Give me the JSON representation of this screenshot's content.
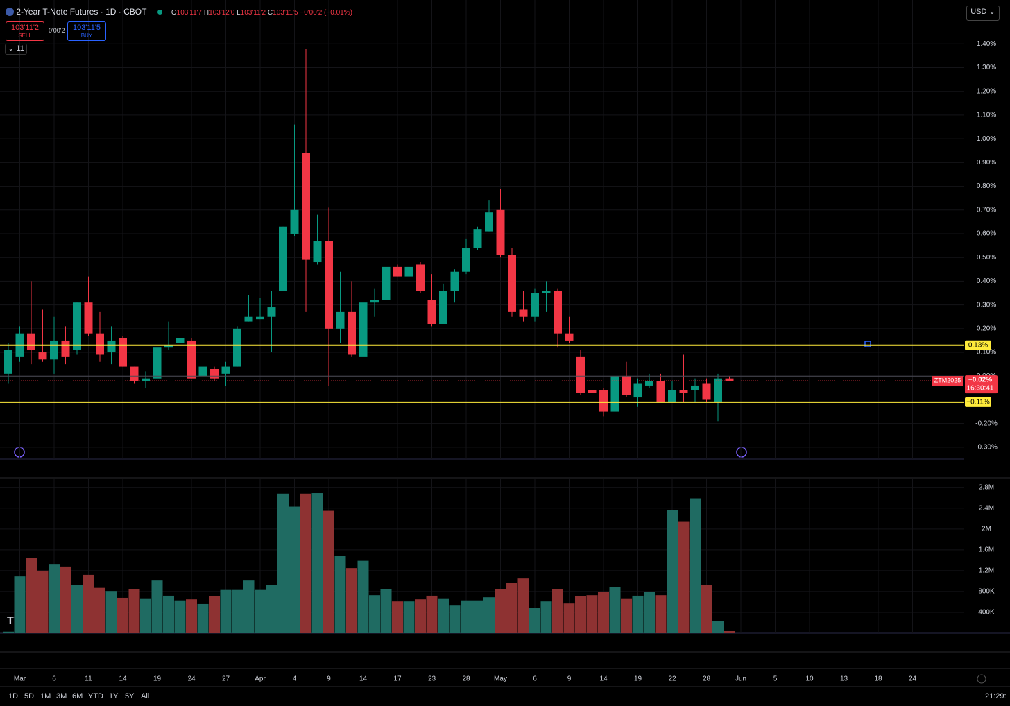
{
  "header": {
    "title": "2-Year T-Note Futures · 1D · CBOT",
    "o_label": "O",
    "o": "103'11'7",
    "h_label": "H",
    "h": "103'12'0",
    "l_label": "L",
    "l": "103'11'2",
    "c_label": "C",
    "c": "103'11'5",
    "change": "−0'00'2 (−0.01%)",
    "sell_price": "103'11'2",
    "sell": "SELL",
    "spread": "0'00'2",
    "buy_price": "103'11'5",
    "buy": "BUY",
    "indicators": "11",
    "currency": "USD"
  },
  "toolbar": {
    "ranges": [
      "1D",
      "5D",
      "1M",
      "3M",
      "6M",
      "YTD",
      "1Y",
      "5Y",
      "All"
    ],
    "clock": "21:29:"
  },
  "chart_data": [
    {
      "type": "candlestick",
      "up_color": "#089981",
      "down_color": "#f23645",
      "categories": [
        null,
        "Mar",
        null,
        null,
        "6",
        null,
        null,
        "11",
        null,
        null,
        "14",
        null,
        null,
        "19",
        null,
        null,
        "24",
        null,
        null,
        "27",
        null,
        null,
        "Apr",
        null,
        null,
        "4",
        null,
        null,
        "9",
        null,
        null,
        "14",
        null,
        null,
        "17",
        null,
        null,
        "23",
        null,
        null,
        "28",
        null,
        null,
        "May",
        null,
        null,
        "6",
        null,
        null,
        "9",
        null,
        null,
        "14",
        null,
        null,
        "19",
        null,
        null,
        "22",
        null,
        null,
        "28",
        null,
        null,
        "Jun",
        null,
        null,
        "5",
        null,
        null,
        "10",
        null,
        null,
        "13",
        null,
        null,
        "18",
        null,
        null,
        "24"
      ],
      "open": [
        0.01,
        0.08,
        0.18,
        0.1,
        0.07,
        0.15,
        0.11,
        0.31,
        0.18,
        0.1,
        0.16,
        0.04,
        -0.02,
        -0.01,
        0.12,
        0.14,
        0.15,
        0.0,
        0.03,
        0.01,
        0.04,
        0.23,
        0.24,
        0.25,
        0.36,
        0.6,
        0.94,
        0.48,
        0.57,
        0.2,
        0.27,
        0.08,
        0.31,
        0.32,
        0.46,
        0.42,
        0.47,
        0.32,
        0.22,
        0.36,
        0.44,
        0.54,
        0.61,
        0.7,
        0.51,
        0.28,
        0.25,
        0.35,
        0.36,
        0.18,
        0.08,
        -0.06,
        -0.06,
        -0.15,
        0.0,
        -0.09,
        -0.04,
        -0.02,
        -0.11,
        -0.06,
        -0.06,
        -0.03,
        -0.11,
        -0.01,
        null,
        null,
        null,
        null,
        null,
        null,
        null,
        null,
        null,
        null,
        null,
        null,
        null,
        null,
        null,
        null
      ],
      "high": [
        0.14,
        0.21,
        0.4,
        0.28,
        0.25,
        0.21,
        0.31,
        0.42,
        0.27,
        0.21,
        0.17,
        0.04,
        0.02,
        0.12,
        0.23,
        0.23,
        0.16,
        0.06,
        0.04,
        0.06,
        0.21,
        0.34,
        0.33,
        0.36,
        0.63,
        1.06,
        1.38,
        0.68,
        0.71,
        0.44,
        0.4,
        0.36,
        0.37,
        0.47,
        0.47,
        0.56,
        0.48,
        0.43,
        0.39,
        0.45,
        0.58,
        0.63,
        0.74,
        0.79,
        0.54,
        0.36,
        0.37,
        0.4,
        0.37,
        0.25,
        0.11,
        0.04,
        -0.05,
        0.01,
        0.06,
        -0.01,
        0.01,
        0.01,
        -0.02,
        0.09,
        -0.01,
        -0.01,
        0.01,
        0.0,
        null,
        null,
        null,
        null,
        null,
        null,
        null,
        null,
        null,
        null,
        null,
        null,
        null,
        null,
        null,
        null
      ],
      "low": [
        -0.03,
        0.06,
        0.05,
        0.06,
        0.01,
        0.05,
        0.09,
        0.17,
        0.06,
        0.05,
        0.04,
        -0.03,
        -0.05,
        -0.11,
        0.11,
        0.14,
        -0.01,
        -0.04,
        -0.02,
        -0.04,
        0.04,
        0.23,
        0.24,
        0.1,
        0.36,
        0.59,
        0.27,
        0.47,
        -0.04,
        0.14,
        0.08,
        0.01,
        0.25,
        0.31,
        0.42,
        0.42,
        0.35,
        0.21,
        0.22,
        0.31,
        0.43,
        0.53,
        0.61,
        0.5,
        0.25,
        0.23,
        0.23,
        0.27,
        0.12,
        0.14,
        -0.08,
        -0.1,
        -0.17,
        -0.16,
        -0.09,
        -0.13,
        -0.05,
        -0.11,
        -0.11,
        -0.11,
        -0.11,
        -0.11,
        -0.19,
        -0.02,
        null,
        null,
        null,
        null,
        null,
        null,
        null,
        null,
        null,
        null,
        null,
        null,
        null,
        null,
        null,
        null
      ],
      "close": [
        0.11,
        0.18,
        0.11,
        0.07,
        0.15,
        0.08,
        0.31,
        0.18,
        0.09,
        0.15,
        0.04,
        -0.02,
        -0.01,
        0.12,
        0.13,
        0.16,
        -0.01,
        0.04,
        -0.01,
        0.04,
        0.2,
        0.25,
        0.25,
        0.29,
        0.63,
        0.7,
        0.49,
        0.57,
        0.2,
        0.27,
        0.09,
        0.31,
        0.32,
        0.46,
        0.42,
        0.46,
        0.36,
        0.22,
        0.36,
        0.44,
        0.54,
        0.62,
        0.69,
        0.51,
        0.27,
        0.25,
        0.35,
        0.36,
        0.18,
        0.15,
        -0.07,
        -0.07,
        -0.15,
        0.0,
        -0.08,
        -0.03,
        -0.02,
        -0.11,
        -0.06,
        -0.07,
        -0.04,
        -0.1,
        -0.01,
        -0.02,
        null,
        null,
        null,
        null,
        null,
        null,
        null,
        null,
        null,
        null,
        null,
        null,
        null,
        null,
        null,
        null
      ],
      "ylim": [
        -0.35,
        1.585
      ],
      "yticks": [
        {
          "value": 1.4,
          "label": "1.40%"
        },
        {
          "value": 1.3,
          "label": "1.30%"
        },
        {
          "value": 1.2,
          "label": "1.20%"
        },
        {
          "value": 1.1,
          "label": "1.10%"
        },
        {
          "value": 1.0,
          "label": "1.00%"
        },
        {
          "value": 0.9,
          "label": "0.90%"
        },
        {
          "value": 0.8,
          "label": "0.80%"
        },
        {
          "value": 0.7,
          "label": "0.70%"
        },
        {
          "value": 0.6,
          "label": "0.60%"
        },
        {
          "value": 0.5,
          "label": "0.50%"
        },
        {
          "value": 0.4,
          "label": "0.40%"
        },
        {
          "value": 0.3,
          "label": "0.30%"
        },
        {
          "value": 0.2,
          "label": "0.20%"
        },
        {
          "value": 0.1,
          "label": "0.10%"
        },
        {
          "value": 0,
          "label": "0.00%"
        },
        {
          "value": -0.2,
          "label": "-0.20%"
        },
        {
          "value": -0.3,
          "label": "-0.30%"
        }
      ],
      "lines": [
        {
          "value": 0.13,
          "label": "0.13%",
          "color": "#ffeb3b"
        },
        {
          "value": -0.11,
          "label": "−0.11%",
          "color": "#ffeb3b"
        }
      ],
      "last": {
        "value": -0.02,
        "label": "−0.02%",
        "countdown": "16:30:41",
        "symbol": "ZTM2025",
        "color": "#f23645"
      },
      "grid": true
    },
    {
      "type": "bar",
      "up_color": "#1f6b62",
      "down_color": "#8e3232",
      "values": [
        0.03,
        1.09,
        1.44,
        1.2,
        1.33,
        1.28,
        0.92,
        1.12,
        0.87,
        0.81,
        0.68,
        0.85,
        0.67,
        1.01,
        0.72,
        0.63,
        0.65,
        0.56,
        0.71,
        0.83,
        0.83,
        1.01,
        0.83,
        0.92,
        2.68,
        2.43,
        2.68,
        2.69,
        2.35,
        1.49,
        1.25,
        1.39,
        0.73,
        0.84,
        0.61,
        0.61,
        0.65,
        0.72,
        0.67,
        0.53,
        0.63,
        0.63,
        0.69,
        0.84,
        0.96,
        1.05,
        0.49,
        0.61,
        0.85,
        0.57,
        0.71,
        0.73,
        0.79,
        0.89,
        0.67,
        0.72,
        0.79,
        0.73,
        2.37,
        2.15,
        2.59,
        0.92,
        0.23,
        0.04,
        null,
        null,
        null,
        null,
        null,
        null,
        null,
        null,
        null,
        null,
        null,
        null,
        null,
        null,
        null,
        null
      ],
      "ylim": [
        0,
        2.97
      ],
      "yticks": [
        {
          "value": 2.8,
          "label": "2.8M"
        },
        {
          "value": 2.4,
          "label": "2.4M"
        },
        {
          "value": 2,
          "label": "2M"
        },
        {
          "value": 1.6,
          "label": "1.6M"
        },
        {
          "value": 1.2,
          "label": "1.2M"
        },
        {
          "value": 0.8,
          "label": "800K"
        },
        {
          "value": 0.4,
          "label": "400K"
        }
      ],
      "grid": true
    }
  ]
}
